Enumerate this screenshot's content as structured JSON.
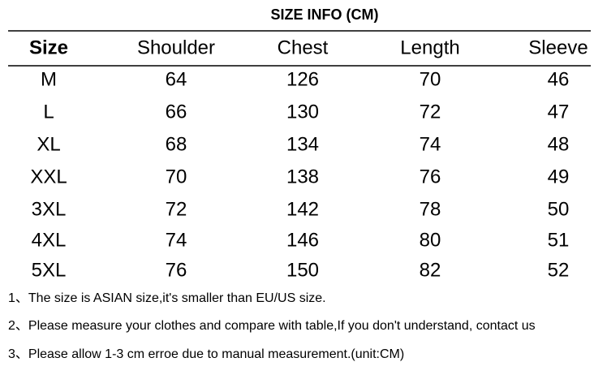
{
  "title": "SIZE INFO (CM)",
  "table": {
    "headers": [
      "Size",
      "Shoulder",
      "Chest",
      "Length",
      "Sleeve"
    ],
    "rows": [
      [
        "M",
        64,
        126,
        70,
        46
      ],
      [
        "L",
        66,
        130,
        72,
        47
      ],
      [
        "XL",
        68,
        134,
        74,
        48
      ],
      [
        "XXL",
        70,
        138,
        76,
        49
      ],
      [
        "3XL",
        72,
        142,
        78,
        50
      ],
      [
        "4XL",
        74,
        146,
        80,
        51
      ],
      [
        "5XL",
        76,
        150,
        82,
        52
      ]
    ]
  },
  "notes": [
    "1、The size is ASIAN size,it's smaller than EU/US size.",
    "2、Please measure your clothes and compare with table,If you don't understand, contact us",
    "3、Please allow 1-3 cm erroe due to manual measurement.(unit:CM)"
  ]
}
